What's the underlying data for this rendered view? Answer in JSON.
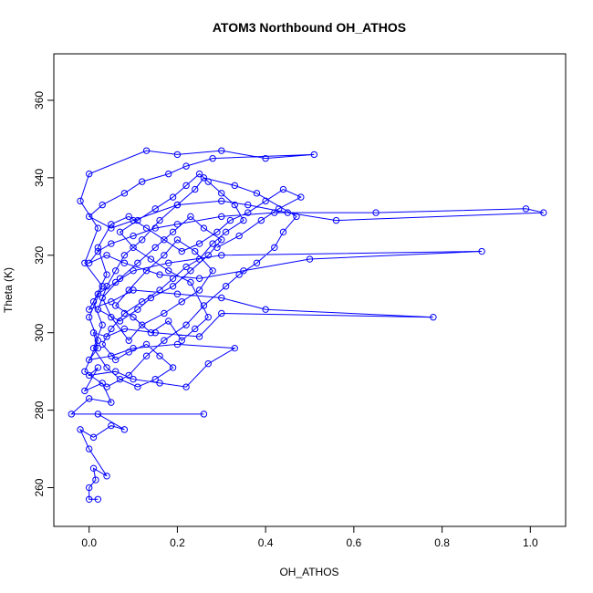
{
  "chart_data": {
    "type": "scatter",
    "title": "ATOM3 Northbound OH_ATHOS",
    "xlabel": "OH_ATHOS",
    "ylabel": "Theta (K)",
    "xlim": [
      -0.08,
      1.08
    ],
    "ylim": [
      250,
      372
    ],
    "x_ticks": [
      0.0,
      0.2,
      0.4,
      0.6,
      0.8,
      1.0
    ],
    "x_tick_labels": [
      "0.0",
      "0.2",
      "0.4",
      "0.6",
      "0.8",
      "1.0"
    ],
    "y_ticks": [
      260,
      280,
      300,
      320,
      340,
      360
    ],
    "y_tick_labels": [
      "260",
      "280",
      "300",
      "320",
      "340",
      "360"
    ],
    "grid": false,
    "color": "#0000ff",
    "markers": "open-circle-with-connecting-lines",
    "series": [
      {
        "points": [
          [
            0.02,
            257
          ],
          [
            0.0,
            257
          ],
          [
            0.0,
            260
          ],
          [
            0.015,
            262
          ],
          [
            0.01,
            265
          ],
          [
            0.04,
            263
          ],
          [
            0.0,
            270
          ],
          [
            -0.02,
            275
          ],
          [
            0.01,
            273
          ],
          [
            0.05,
            276
          ],
          [
            0.08,
            275
          ],
          [
            0.02,
            279
          ],
          [
            0.26,
            279
          ],
          [
            -0.04,
            279
          ],
          [
            0.0,
            283
          ],
          [
            0.05,
            282
          ],
          [
            0.03,
            287
          ],
          [
            -0.01,
            285
          ],
          [
            0.02,
            291
          ],
          [
            0.0,
            289
          ],
          [
            0.06,
            290
          ],
          [
            0.1,
            288
          ],
          [
            0.16,
            287
          ],
          [
            0.22,
            286
          ],
          [
            0.27,
            292
          ],
          [
            0.33,
            296
          ],
          [
            0.2,
            297
          ],
          [
            0.1,
            296
          ],
          [
            0.05,
            294
          ],
          [
            0.0,
            293
          ],
          [
            0.02,
            296
          ],
          [
            0.01,
            300
          ],
          [
            0.04,
            299
          ],
          [
            0.08,
            301
          ],
          [
            0.15,
            300
          ],
          [
            0.25,
            299
          ],
          [
            0.3,
            305
          ],
          [
            0.78,
            304
          ],
          [
            0.4,
            306
          ],
          [
            0.3,
            309
          ],
          [
            0.2,
            310
          ],
          [
            0.1,
            311
          ],
          [
            0.05,
            308
          ],
          [
            0.0,
            306
          ],
          [
            0.02,
            310
          ],
          [
            0.06,
            313
          ],
          [
            0.1,
            316
          ],
          [
            0.18,
            318
          ],
          [
            0.3,
            320
          ],
          [
            0.89,
            321
          ],
          [
            0.5,
            319
          ],
          [
            0.35,
            316
          ],
          [
            0.25,
            314
          ],
          [
            0.16,
            315
          ],
          [
            0.08,
            318
          ],
          [
            0.04,
            320
          ],
          [
            0.0,
            318
          ],
          [
            0.02,
            321
          ],
          [
            0.05,
            323
          ],
          [
            0.1,
            325
          ],
          [
            0.15,
            327
          ],
          [
            0.2,
            328
          ],
          [
            0.3,
            330
          ],
          [
            0.42,
            331
          ],
          [
            0.65,
            331
          ],
          [
            0.99,
            332
          ],
          [
            1.03,
            331
          ],
          [
            0.56,
            329
          ],
          [
            0.45,
            331
          ],
          [
            0.36,
            333
          ],
          [
            0.3,
            334
          ],
          [
            0.2,
            333
          ],
          [
            0.1,
            329
          ],
          [
            0.05,
            327
          ],
          [
            0.0,
            330
          ],
          [
            0.03,
            333
          ],
          [
            0.08,
            336
          ],
          [
            0.12,
            339
          ],
          [
            0.18,
            341
          ],
          [
            0.22,
            343
          ],
          [
            0.28,
            345
          ],
          [
            0.51,
            346
          ],
          [
            0.4,
            345
          ],
          [
            0.3,
            347
          ],
          [
            0.2,
            346
          ],
          [
            0.13,
            347
          ],
          [
            0.0,
            341
          ],
          [
            -0.02,
            334
          ],
          [
            0.02,
            327
          ],
          [
            -0.01,
            318
          ],
          [
            0.03,
            312
          ],
          [
            0.0,
            304
          ],
          [
            0.02,
            298
          ],
          [
            -0.01,
            290
          ],
          [
            0.04,
            286
          ],
          [
            0.09,
            289
          ],
          [
            0.13,
            294
          ],
          [
            0.17,
            298
          ],
          [
            0.22,
            302
          ],
          [
            0.26,
            307
          ],
          [
            0.31,
            312
          ],
          [
            0.34,
            315
          ],
          [
            0.38,
            318
          ],
          [
            0.42,
            322
          ],
          [
            0.44,
            326
          ],
          [
            0.47,
            330
          ],
          [
            0.38,
            336
          ],
          [
            0.33,
            338
          ],
          [
            0.26,
            340
          ],
          [
            0.24,
            337
          ],
          [
            0.2,
            333
          ],
          [
            0.16,
            329
          ],
          [
            0.12,
            324
          ],
          [
            0.08,
            320
          ],
          [
            0.06,
            316
          ],
          [
            0.04,
            312
          ],
          [
            0.02,
            306
          ],
          [
            0.07,
            303
          ],
          [
            0.11,
            306
          ],
          [
            0.14,
            309
          ],
          [
            0.19,
            312
          ],
          [
            0.23,
            316
          ],
          [
            0.27,
            320
          ],
          [
            0.3,
            324
          ],
          [
            0.26,
            327
          ],
          [
            0.23,
            330
          ],
          [
            0.19,
            326
          ],
          [
            0.15,
            322
          ],
          [
            0.11,
            318
          ],
          [
            0.07,
            314
          ],
          [
            0.03,
            309
          ],
          [
            0.05,
            304
          ],
          [
            0.09,
            298
          ],
          [
            0.12,
            302
          ],
          [
            0.17,
            305
          ],
          [
            0.21,
            308
          ],
          [
            0.25,
            311
          ],
          [
            0.28,
            316
          ],
          [
            0.24,
            321
          ],
          [
            0.2,
            324
          ],
          [
            0.17,
            320
          ],
          [
            0.13,
            316
          ],
          [
            0.09,
            311
          ],
          [
            0.06,
            307
          ],
          [
            0.1,
            304
          ],
          [
            0.14,
            300
          ],
          [
            0.18,
            303
          ],
          [
            0.21,
            298
          ],
          [
            0.24,
            301
          ],
          [
            0.27,
            304
          ],
          [
            0.23,
            313
          ],
          [
            0.18,
            316
          ],
          [
            0.14,
            319
          ],
          [
            0.1,
            322
          ],
          [
            0.07,
            326
          ],
          [
            0.11,
            329
          ],
          [
            0.15,
            332
          ],
          [
            0.19,
            335
          ],
          [
            0.22,
            338
          ],
          [
            0.25,
            341
          ],
          [
            0.27,
            339
          ],
          [
            0.3,
            336
          ],
          [
            0.33,
            333
          ],
          [
            0.35,
            329
          ],
          [
            0.31,
            326
          ],
          [
            0.28,
            323
          ],
          [
            0.25,
            319
          ],
          [
            0.22,
            317
          ],
          [
            0.19,
            314
          ],
          [
            0.16,
            311
          ],
          [
            0.12,
            308
          ],
          [
            0.08,
            305
          ],
          [
            0.05,
            301
          ],
          [
            0.03,
            297
          ],
          [
            0.06,
            293
          ],
          [
            0.09,
            295
          ],
          [
            0.13,
            297
          ],
          [
            0.16,
            294
          ],
          [
            0.19,
            291
          ],
          [
            0.15,
            288
          ],
          [
            0.11,
            286
          ],
          [
            0.07,
            288
          ],
          [
            0.04,
            291
          ],
          [
            0.01,
            296
          ],
          [
            0.03,
            302
          ],
          [
            0.01,
            308
          ],
          [
            0.04,
            315
          ],
          [
            0.02,
            322
          ],
          [
            0.05,
            328
          ],
          [
            0.09,
            330
          ],
          [
            0.13,
            327
          ],
          [
            0.17,
            324
          ],
          [
            0.21,
            321
          ],
          [
            0.25,
            323
          ],
          [
            0.29,
            326
          ],
          [
            0.32,
            329
          ],
          [
            0.36,
            331
          ],
          [
            0.4,
            334
          ],
          [
            0.44,
            337
          ],
          [
            0.48,
            335
          ],
          [
            0.43,
            332
          ],
          [
            0.39,
            329
          ],
          [
            0.34,
            325
          ],
          [
            0.29,
            322
          ]
        ]
      }
    ]
  }
}
